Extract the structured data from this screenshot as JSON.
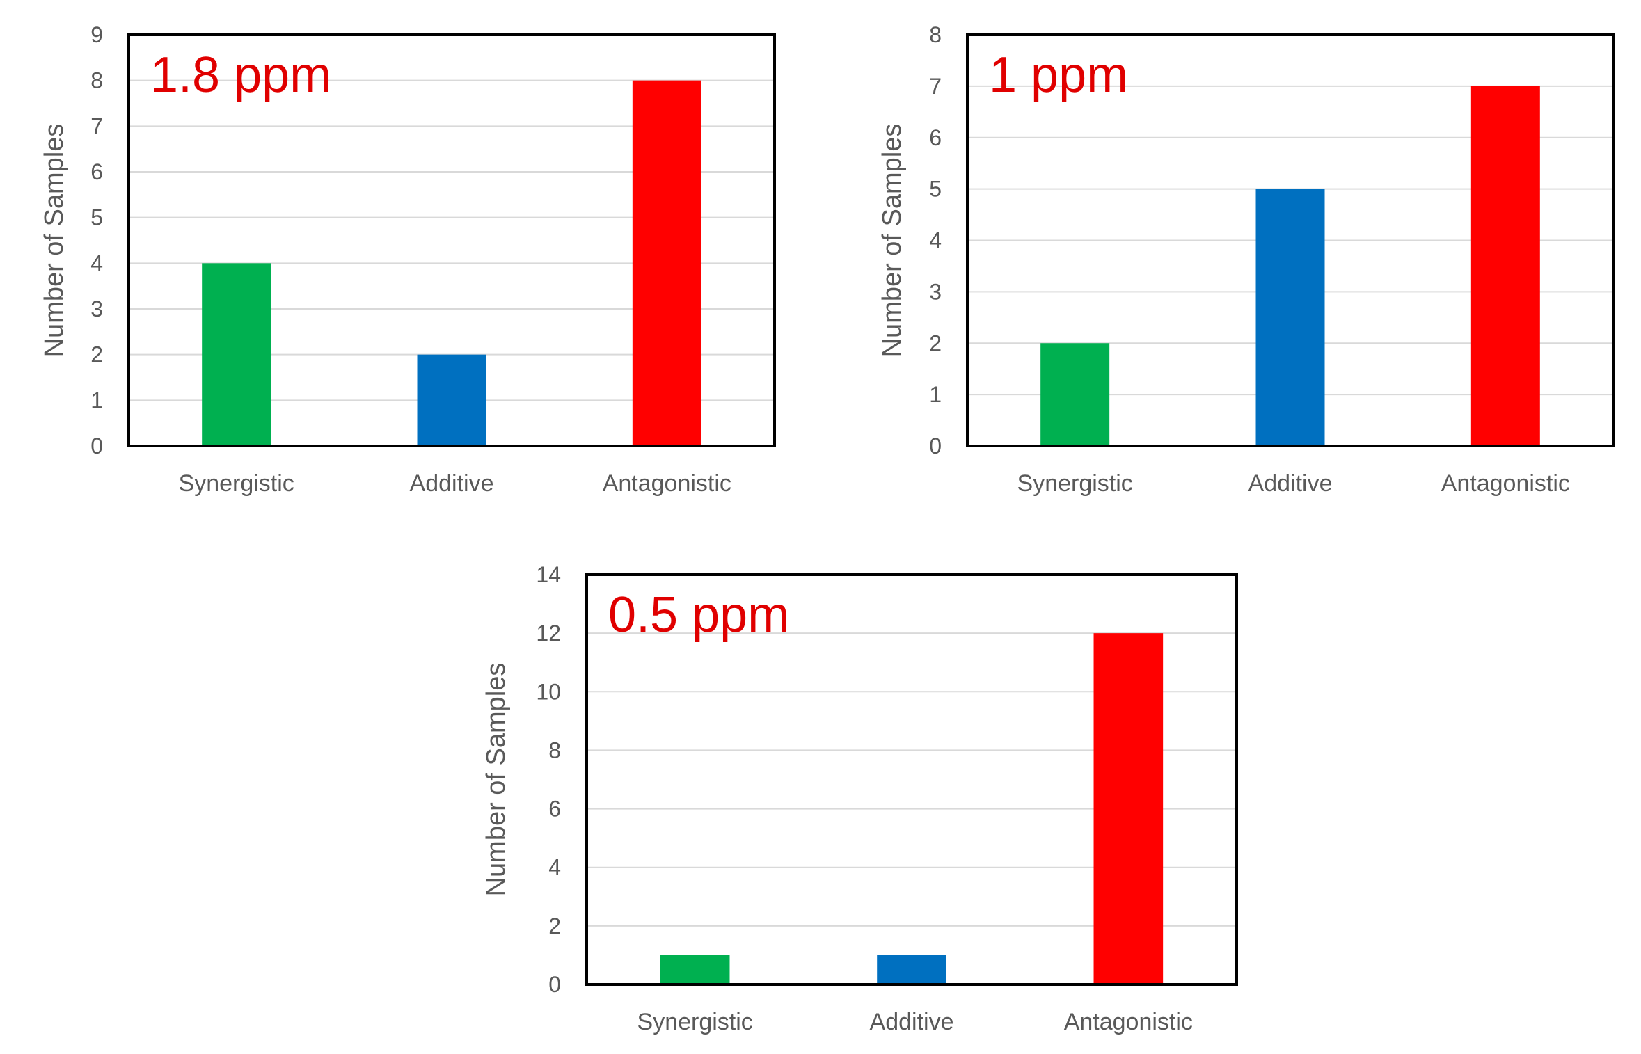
{
  "chart_data": [
    {
      "type": "bar",
      "title": "1.8 ppm",
      "ylabel": "Number of Samples",
      "categories": [
        "Synergistic",
        "Additive",
        "Antagonistic"
      ],
      "values": [
        4,
        2,
        8
      ],
      "colors": [
        "#00b050",
        "#0070c0",
        "#ff0000"
      ],
      "ylim": [
        0,
        9
      ],
      "yticks": [
        "0",
        "1",
        "2",
        "3",
        "4",
        "5",
        "6",
        "7",
        "8",
        "9"
      ],
      "grid": true,
      "title_color": "#e00000"
    },
    {
      "type": "bar",
      "title": "1 ppm",
      "ylabel": "Number of Samples",
      "categories": [
        "Synergistic",
        "Additive",
        "Antagonistic"
      ],
      "values": [
        2,
        5,
        7
      ],
      "colors": [
        "#00b050",
        "#0070c0",
        "#ff0000"
      ],
      "ylim": [
        0,
        8
      ],
      "yticks": [
        "0",
        "1",
        "2",
        "3",
        "4",
        "5",
        "6",
        "7",
        "8"
      ],
      "grid": true,
      "title_color": "#e00000"
    },
    {
      "type": "bar",
      "title": "0.5 ppm",
      "ylabel": "Number of Samples",
      "categories": [
        "Synergistic",
        "Additive",
        "Antagonistic"
      ],
      "values": [
        1,
        1,
        12
      ],
      "colors": [
        "#00b050",
        "#0070c0",
        "#ff0000"
      ],
      "ylim": [
        0,
        14
      ],
      "yticks": [
        "0",
        "2",
        "4",
        "6",
        "8",
        "10",
        "12",
        "14"
      ],
      "grid": true,
      "title_color": "#e00000"
    }
  ]
}
